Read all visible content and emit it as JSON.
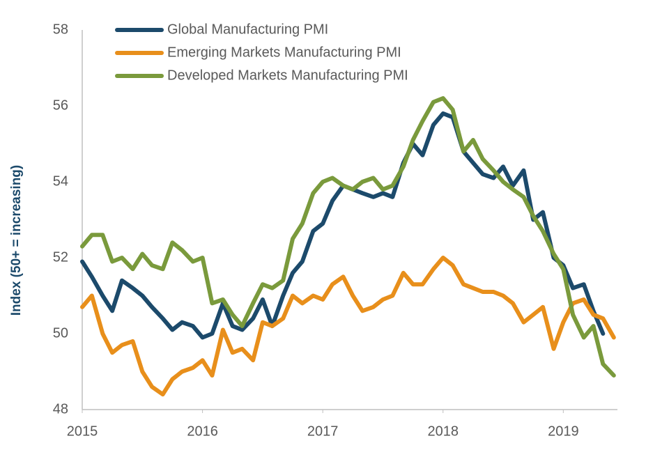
{
  "chart_data": {
    "type": "line",
    "y_label": "Index (50+ = increasing)",
    "x": [
      2015,
      2015.08,
      2015.17,
      2015.25,
      2015.33,
      2015.42,
      2015.5,
      2015.58,
      2015.67,
      2015.75,
      2015.83,
      2015.92,
      2016,
      2016.08,
      2016.17,
      2016.25,
      2016.33,
      2016.42,
      2016.5,
      2016.58,
      2016.67,
      2016.75,
      2016.83,
      2016.92,
      2017,
      2017.08,
      2017.17,
      2017.25,
      2017.33,
      2017.42,
      2017.5,
      2017.58,
      2017.67,
      2017.75,
      2017.83,
      2017.92,
      2018,
      2018.08,
      2018.17,
      2018.25,
      2018.33,
      2018.42,
      2018.5,
      2018.58,
      2018.67,
      2018.75,
      2018.83,
      2018.92,
      2019,
      2019.08,
      2019.17,
      2019.25,
      2019.33,
      2019.42
    ],
    "series": [
      {
        "name": "Global Manufacturing PMI",
        "color": "#1c4a6b",
        "values": [
          51.9,
          51.5,
          51.0,
          50.6,
          51.4,
          51.2,
          51.0,
          50.7,
          50.4,
          50.1,
          50.3,
          50.2,
          49.9,
          50.0,
          50.8,
          50.2,
          50.1,
          50.4,
          50.9,
          50.2,
          51.0,
          51.6,
          51.9,
          52.7,
          52.9,
          53.5,
          53.9,
          53.8,
          53.7,
          53.6,
          53.7,
          53.6,
          54.5,
          55.0,
          54.7,
          55.5,
          55.8,
          55.7,
          54.8,
          54.5,
          54.2,
          54.1,
          54.4,
          53.9,
          54.3,
          53.0,
          53.2,
          52.0,
          51.8,
          51.2,
          51.3,
          50.6,
          50.0,
          null
        ]
      },
      {
        "name": "Emerging Markets Manufacturing PMI",
        "color": "#e88f1b",
        "values": [
          50.7,
          51.0,
          50.0,
          49.5,
          49.7,
          49.8,
          49.0,
          48.6,
          48.4,
          48.8,
          49.0,
          49.1,
          49.3,
          48.9,
          50.1,
          49.5,
          49.6,
          49.3,
          50.3,
          50.2,
          50.4,
          51.0,
          50.8,
          51.0,
          50.9,
          51.3,
          51.5,
          51.0,
          50.6,
          50.7,
          50.9,
          51.0,
          51.6,
          51.3,
          51.3,
          51.7,
          52.0,
          51.8,
          51.3,
          51.2,
          51.1,
          51.1,
          51.0,
          50.8,
          50.3,
          50.5,
          50.7,
          49.6,
          50.3,
          50.8,
          50.9,
          50.5,
          50.4,
          49.9
        ]
      },
      {
        "name": "Developed Markets Manufacturing PMI",
        "color": "#7a9a3c",
        "values": [
          52.3,
          52.6,
          52.6,
          51.9,
          52.0,
          51.7,
          52.1,
          51.8,
          51.7,
          52.4,
          52.2,
          51.9,
          52.0,
          50.8,
          50.9,
          50.5,
          50.2,
          50.8,
          51.3,
          51.2,
          51.4,
          52.5,
          52.9,
          53.7,
          54.0,
          54.1,
          53.9,
          53.8,
          54.0,
          54.1,
          53.8,
          53.9,
          54.4,
          55.1,
          55.6,
          56.1,
          56.2,
          55.9,
          54.8,
          55.1,
          54.6,
          54.3,
          54.0,
          53.8,
          53.6,
          53.1,
          52.7,
          52.1,
          51.7,
          50.5,
          49.9,
          50.2,
          49.2,
          48.9
        ]
      }
    ],
    "xlim": [
      2015,
      2019.45
    ],
    "xticks": [
      2015,
      2016,
      2017,
      2018,
      2019
    ],
    "ylim": [
      48,
      58
    ],
    "yticks": [
      48,
      50,
      52,
      54,
      56,
      58
    ],
    "grid": false,
    "legend": "top-left"
  }
}
